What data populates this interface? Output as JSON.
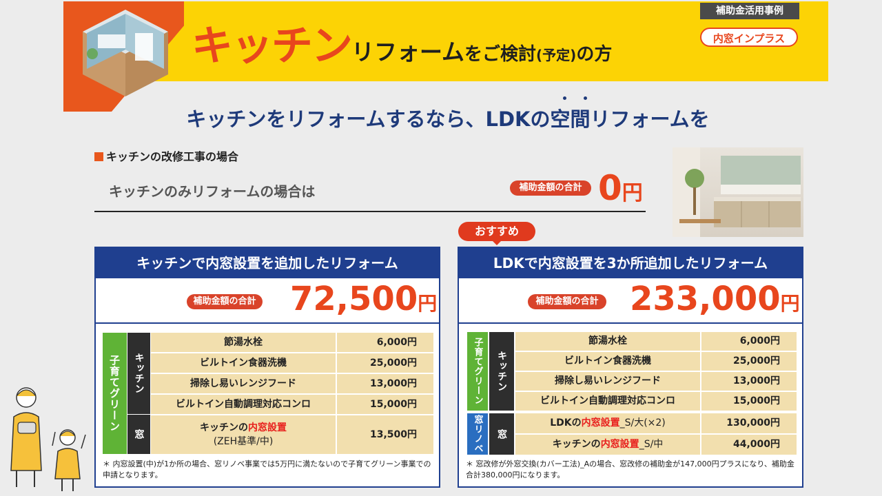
{
  "header": {
    "title_big": "キッチン",
    "title_rest": "リフォーム",
    "title_wo": "をご検討",
    "title_paren": "(予定)",
    "title_end": "の方",
    "case_tag": "補助金活用事例",
    "inplus_tag": "内窓インプラス"
  },
  "subheading": "キッチンをリフォームするなら、LDKの空間リフォームを",
  "kitchen_section": {
    "label": "キッチンの改修工事の場合",
    "kitchen_only_text": "キッチンのみリフォームの場合は",
    "pill": "補助金額の合計",
    "amount": "0",
    "yen": "円"
  },
  "recommend_badge": "おすすめ",
  "plan_left": {
    "title": "キッチンで内窓設置を追加したリフォーム",
    "pill": "補助金額の合計",
    "amount": "72,500",
    "yen": "円",
    "category": "子育てグリーン",
    "subcat_kitchen": "キッチン",
    "subcat_window": "窓",
    "items": [
      {
        "name": "節湯水栓",
        "price": "6,000円"
      },
      {
        "name": "ビルトイン食器洗機",
        "price": "25,000円"
      },
      {
        "name": "掃除し易いレンジフード",
        "price": "13,000円"
      },
      {
        "name": "ビルトイン自動調理対応コンロ",
        "price": "15,000円"
      }
    ],
    "window_item": {
      "prefix": "キッチンの",
      "highlight": "内窓設置",
      "sub": "(ZEH基準/中)",
      "price": "13,500円"
    },
    "note": "＊ 内窓設置(中)が1か所の場合、窓リノベ事業では5万円に満たないので子育てグリーン事業での申請となります。"
  },
  "plan_right": {
    "title": "LDKで内窓設置を3か所追加したリフォーム",
    "pill": "補助金額の合計",
    "amount": "233,000",
    "yen": "円",
    "category": "子育てグリーン",
    "subcat_kitchen": "キッチン",
    "category2": "窓リノベ",
    "subcat_window": "窓",
    "items": [
      {
        "name": "節湯水栓",
        "price": "6,000円"
      },
      {
        "name": "ビルトイン食器洗機",
        "price": "25,000円"
      },
      {
        "name": "掃除し易いレンジフード",
        "price": "13,000円"
      },
      {
        "name": "ビルトイン自動調理対応コンロ",
        "price": "15,000円"
      }
    ],
    "window_items": [
      {
        "prefix": "LDKの",
        "highlight": "内窓設置",
        "suffix": "_S/大(×2)",
        "price": "130,000円"
      },
      {
        "prefix": "キッチンの",
        "highlight": "内窓設置",
        "suffix": "_S/中",
        "price": "44,000円"
      }
    ],
    "note": "＊ 窓改修が外窓交換(カバー工法)_Aの場合、窓改修の補助金が147,000円プラスになり、補助金合計380,000円になります。"
  },
  "colors": {
    "navy": "#1f3f8f",
    "orange": "#e8461d",
    "yellow": "#fcd305",
    "green": "#5fb336",
    "blue": "#2a6ec0",
    "beige": "#f2dfae"
  }
}
